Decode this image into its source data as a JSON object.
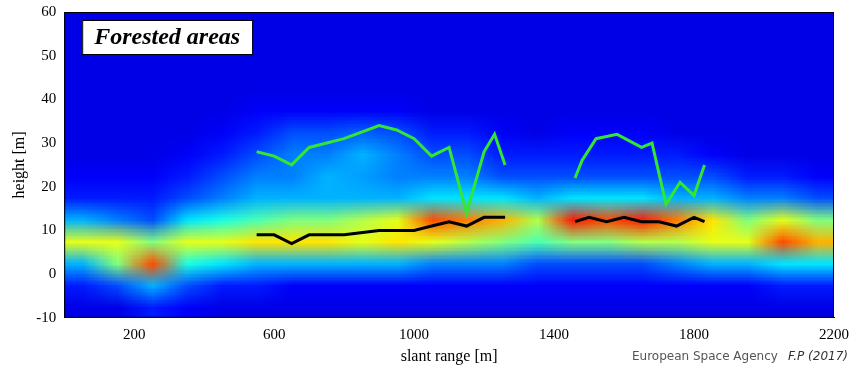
{
  "chart_data": {
    "type": "heatmap",
    "title": "Forested areas",
    "x_label": "slant range [m]",
    "y_label": "height [m]",
    "footer": [
      "European Space Agency",
      "F.P (2017)"
    ],
    "xlim": [
      0,
      2200
    ],
    "xticks": [
      200,
      600,
      1000,
      1400,
      1800,
      2200
    ],
    "ylim": [
      -10,
      60
    ],
    "yticks": [
      -10,
      0,
      10,
      20,
      30,
      40,
      50,
      60
    ],
    "grid": false,
    "heatmap": {
      "x_edges": [
        0,
        100,
        200,
        300,
        400,
        500,
        600,
        700,
        800,
        900,
        1000,
        1100,
        1200,
        1300,
        1400,
        1500,
        1600,
        1700,
        1800,
        1900,
        2000,
        2100,
        2200
      ],
      "y_edges": [
        -10,
        -5,
        0,
        5,
        10,
        15,
        20,
        25,
        30,
        35,
        40,
        45,
        50,
        55,
        60
      ],
      "color_range": [
        0,
        1
      ],
      "cells": [
        [
          0.1,
          0.15,
          0.3,
          0.6,
          0.3,
          0.15,
          0.12,
          0.1,
          0.1,
          0.1,
          0.1,
          0.1,
          0.1,
          0.1
        ],
        [
          0.1,
          0.2,
          0.5,
          0.6,
          0.25,
          0.15,
          0.12,
          0.1,
          0.1,
          0.1,
          0.1,
          0.1,
          0.1,
          0.1
        ],
        [
          0.15,
          0.3,
          0.8,
          0.5,
          0.2,
          0.15,
          0.12,
          0.1,
          0.1,
          0.1,
          0.1,
          0.1,
          0.1,
          0.1
        ],
        [
          0.12,
          0.2,
          0.4,
          0.6,
          0.35,
          0.2,
          0.15,
          0.12,
          0.1,
          0.1,
          0.1,
          0.1,
          0.1,
          0.1
        ],
        [
          0.1,
          0.15,
          0.35,
          0.6,
          0.4,
          0.25,
          0.2,
          0.15,
          0.12,
          0.1,
          0.1,
          0.1,
          0.1,
          0.1
        ],
        [
          0.1,
          0.15,
          0.3,
          0.65,
          0.45,
          0.3,
          0.25,
          0.2,
          0.15,
          0.12,
          0.1,
          0.1,
          0.1,
          0.1
        ],
        [
          0.1,
          0.12,
          0.3,
          0.65,
          0.5,
          0.3,
          0.25,
          0.25,
          0.2,
          0.12,
          0.1,
          0.1,
          0.1,
          0.1
        ],
        [
          0.1,
          0.12,
          0.3,
          0.65,
          0.5,
          0.3,
          0.3,
          0.25,
          0.2,
          0.12,
          0.1,
          0.1,
          0.1,
          0.1
        ],
        [
          0.1,
          0.12,
          0.3,
          0.6,
          0.55,
          0.3,
          0.28,
          0.3,
          0.22,
          0.12,
          0.1,
          0.1,
          0.1,
          0.1
        ],
        [
          0.1,
          0.12,
          0.3,
          0.65,
          0.6,
          0.3,
          0.25,
          0.25,
          0.2,
          0.12,
          0.1,
          0.1,
          0.1,
          0.1
        ],
        [
          0.1,
          0.12,
          0.25,
          0.6,
          0.8,
          0.35,
          0.25,
          0.2,
          0.15,
          0.1,
          0.1,
          0.1,
          0.1,
          0.1
        ],
        [
          0.1,
          0.12,
          0.25,
          0.55,
          0.75,
          0.35,
          0.25,
          0.2,
          0.15,
          0.1,
          0.1,
          0.1,
          0.1,
          0.1
        ],
        [
          0.1,
          0.12,
          0.25,
          0.5,
          0.7,
          0.35,
          0.2,
          0.15,
          0.12,
          0.1,
          0.1,
          0.1,
          0.1,
          0.1
        ],
        [
          0.1,
          0.12,
          0.2,
          0.45,
          0.55,
          0.3,
          0.2,
          0.15,
          0.1,
          0.1,
          0.1,
          0.1,
          0.1,
          0.1
        ],
        [
          0.1,
          0.12,
          0.2,
          0.5,
          0.85,
          0.35,
          0.2,
          0.15,
          0.12,
          0.1,
          0.1,
          0.1,
          0.1,
          0.1
        ],
        [
          0.1,
          0.12,
          0.2,
          0.5,
          0.8,
          0.35,
          0.2,
          0.15,
          0.12,
          0.1,
          0.1,
          0.1,
          0.1,
          0.1
        ],
        [
          0.1,
          0.12,
          0.2,
          0.55,
          0.85,
          0.35,
          0.2,
          0.15,
          0.12,
          0.1,
          0.1,
          0.1,
          0.1,
          0.1
        ],
        [
          0.1,
          0.12,
          0.25,
          0.55,
          0.75,
          0.3,
          0.2,
          0.15,
          0.1,
          0.1,
          0.1,
          0.1,
          0.1,
          0.1
        ],
        [
          0.1,
          0.12,
          0.3,
          0.6,
          0.65,
          0.3,
          0.2,
          0.12,
          0.1,
          0.1,
          0.1,
          0.1,
          0.1,
          0.1
        ],
        [
          0.1,
          0.12,
          0.3,
          0.6,
          0.5,
          0.25,
          0.15,
          0.1,
          0.1,
          0.1,
          0.1,
          0.1,
          0.1,
          0.1
        ],
        [
          0.1,
          0.15,
          0.35,
          0.8,
          0.6,
          0.25,
          0.15,
          0.1,
          0.1,
          0.1,
          0.1,
          0.1,
          0.1,
          0.1
        ],
        [
          0.1,
          0.15,
          0.35,
          0.7,
          0.5,
          0.2,
          0.12,
          0.1,
          0.1,
          0.1,
          0.1,
          0.1,
          0.1,
          0.1
        ]
      ]
    },
    "series": [
      {
        "color": "#33e633",
        "type": "line",
        "x": [
          550,
          600,
          650,
          700,
          800,
          900,
          950,
          1000,
          1050,
          1100,
          1150,
          1200,
          1230,
          1260,
          1360,
          1460,
          1480,
          1520,
          1580,
          1650,
          1680,
          1720,
          1760,
          1800,
          1830
        ],
        "values": [
          28,
          27,
          25,
          29,
          31,
          34,
          33,
          31,
          27,
          29,
          14,
          28,
          32,
          25,
          null,
          22,
          26,
          31,
          32,
          29,
          30,
          16,
          21,
          18,
          25
        ]
      },
      {
        "color": "#000000",
        "type": "line",
        "x": [
          550,
          600,
          650,
          700,
          800,
          900,
          1000,
          1050,
          1100,
          1150,
          1200,
          1260,
          1360,
          1460,
          1500,
          1550,
          1600,
          1650,
          1700,
          1750,
          1800,
          1830
        ],
        "values": [
          9,
          9,
          7,
          9,
          9,
          10,
          10,
          11,
          12,
          11,
          13,
          13,
          null,
          12,
          13,
          12,
          13,
          12,
          12,
          11,
          13,
          12
        ]
      }
    ]
  }
}
